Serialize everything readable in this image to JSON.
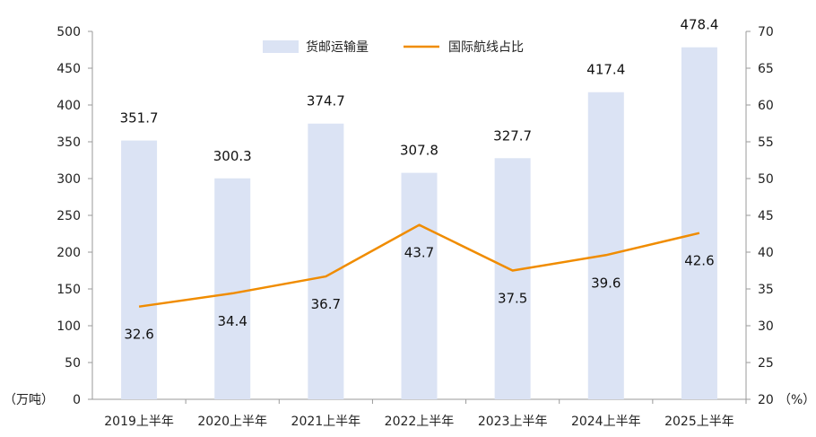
{
  "chart_data": {
    "type": "bar",
    "categories": [
      "2019上半年",
      "2020上半年",
      "2021上半年",
      "2022上半年",
      "2023上半年",
      "2024上半年",
      "2025上半年"
    ],
    "series": [
      {
        "name": "货邮运输量",
        "type": "bar",
        "axis": "left",
        "color": "#dbe3f4",
        "values": [
          351.7,
          300.3,
          374.7,
          307.8,
          327.7,
          417.4,
          478.4
        ]
      },
      {
        "name": "国际航线占比",
        "type": "line",
        "axis": "right",
        "color": "#f08c00",
        "values": [
          32.6,
          34.4,
          36.7,
          43.7,
          37.5,
          39.6,
          42.6
        ]
      }
    ],
    "left_axis": {
      "unit": "（万吨）",
      "min": 0,
      "max": 500,
      "step": 50
    },
    "right_axis": {
      "unit": "（%）",
      "min": 20,
      "max": 70,
      "step": 5
    },
    "grid": false,
    "legend": "top-center"
  }
}
